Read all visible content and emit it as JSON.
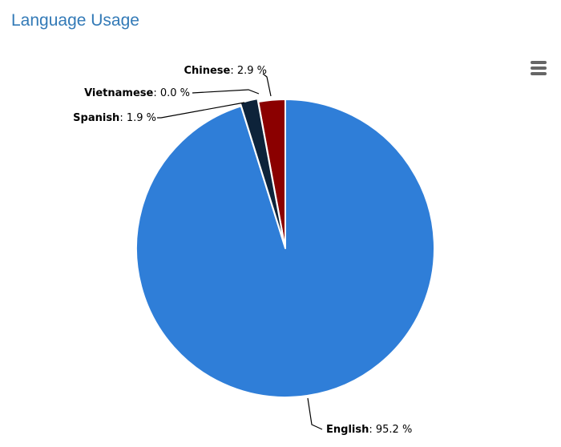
{
  "title": "Language Usage",
  "menu": {
    "icon": "hamburger-menu-icon"
  },
  "chart_data": {
    "type": "pie",
    "title": "Language Usage",
    "value_suffix": " %",
    "slices": [
      {
        "name": "Chinese",
        "value": 2.9,
        "label": "2.9 %",
        "color": "#8b0000"
      },
      {
        "name": "English",
        "value": 95.2,
        "label": "95.2 %",
        "color": "#2f7ed8"
      },
      {
        "name": "Spanish",
        "value": 1.9,
        "label": "1.9 %",
        "color": "#0d233a"
      },
      {
        "name": "Vietnamese",
        "value": 0.0,
        "label": "0.0 %",
        "color": "#1aadce"
      }
    ]
  }
}
